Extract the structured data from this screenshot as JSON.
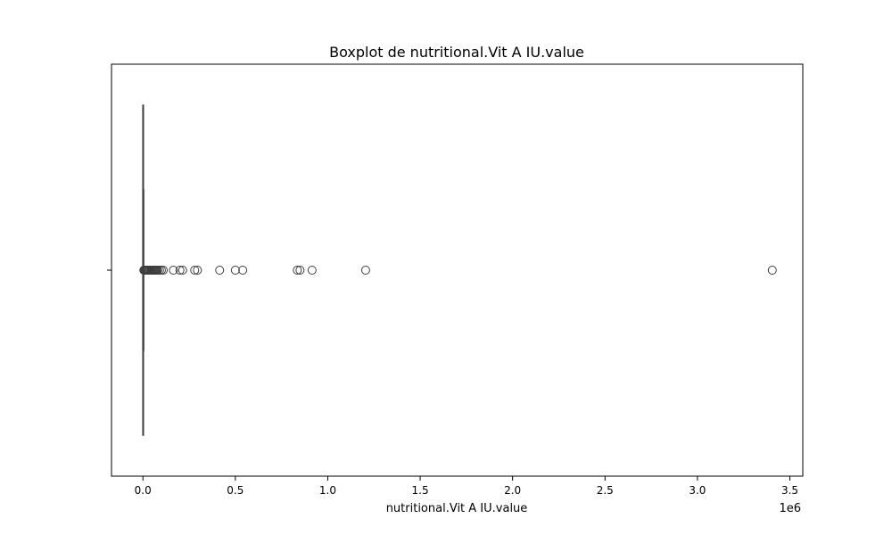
{
  "chart_data": {
    "type": "boxplot",
    "title": "Boxplot de nutritional.Vit A IU.value",
    "xlabel": "nutritional.Vit A IU.value",
    "ylabel": "",
    "offset_text": "1e6",
    "xlim": [
      -170000,
      3570000
    ],
    "x_ticks": [
      0,
      500000,
      1000000,
      1500000,
      2000000,
      2500000,
      3000000,
      3500000
    ],
    "x_tick_labels": [
      "0.0",
      "0.5",
      "1.0",
      "1.5",
      "2.0",
      "2.5",
      "3.0",
      "3.5"
    ],
    "grid": false,
    "box": {
      "whisker_low": 0,
      "q1": 0,
      "median": 0,
      "q3": 0,
      "whisker_high": 4000
    },
    "outliers": [
      5000,
      8000,
      12000,
      15000,
      20000,
      25000,
      30000,
      35000,
      40000,
      45000,
      50000,
      55000,
      60000,
      65000,
      70000,
      75000,
      80000,
      90000,
      100000,
      110000,
      165000,
      200000,
      215000,
      280000,
      295000,
      415000,
      500000,
      540000,
      835000,
      850000,
      915000,
      1205000,
      3405000
    ],
    "colors": {
      "box_line": "#3d3d3d",
      "outlier_edge": "#3d3d3d",
      "axes": "#000000"
    }
  }
}
